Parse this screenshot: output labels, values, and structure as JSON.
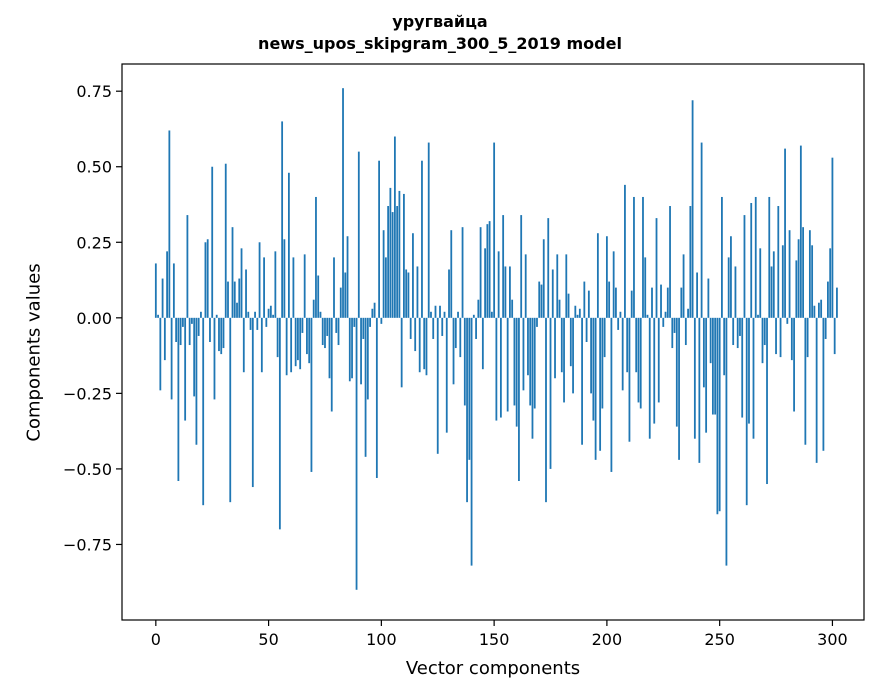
{
  "chart_data": {
    "type": "bar",
    "title_line1": "уругвайца",
    "title_line2": "news_upos_skipgram_300_5_2019 model",
    "xlabel": "Vector components",
    "ylabel": "Components values",
    "xlim": [
      -15,
      314
    ],
    "ylim": [
      -1.0,
      0.84
    ],
    "x_ticks": [
      0,
      50,
      100,
      150,
      200,
      250,
      300
    ],
    "x_tick_labels": [
      "0",
      "50",
      "100",
      "150",
      "200",
      "250",
      "300"
    ],
    "y_ticks": [
      -0.75,
      -0.5,
      -0.25,
      0.0,
      0.25,
      0.5,
      0.75
    ],
    "y_tick_labels": [
      "−0.75",
      "−0.50",
      "−0.25",
      "0.00",
      "0.25",
      "0.50",
      "0.75"
    ],
    "bar_color": "#1f77b4",
    "values": [
      0.18,
      0.01,
      -0.24,
      0.13,
      -0.14,
      0.22,
      0.62,
      -0.27,
      0.18,
      -0.08,
      -0.54,
      -0.09,
      -0.03,
      -0.34,
      0.34,
      -0.09,
      -0.02,
      -0.26,
      -0.42,
      -0.06,
      0.02,
      -0.62,
      0.25,
      0.26,
      -0.08,
      0.5,
      -0.27,
      0.01,
      -0.11,
      -0.12,
      -0.1,
      0.51,
      0.12,
      -0.61,
      0.3,
      0.12,
      0.05,
      0.13,
      0.23,
      -0.18,
      0.16,
      0.02,
      -0.04,
      -0.56,
      0.02,
      -0.04,
      0.25,
      -0.18,
      0.2,
      -0.03,
      0.03,
      0.04,
      0.01,
      0.22,
      -0.13,
      -0.7,
      0.65,
      0.26,
      -0.19,
      0.48,
      -0.18,
      0.2,
      -0.16,
      -0.14,
      -0.17,
      -0.05,
      0.21,
      -0.12,
      -0.15,
      -0.51,
      0.06,
      0.4,
      0.14,
      0.02,
      -0.09,
      -0.1,
      -0.06,
      -0.2,
      -0.31,
      0.2,
      -0.05,
      -0.09,
      0.1,
      0.76,
      0.15,
      0.27,
      -0.21,
      -0.2,
      -0.03,
      -0.9,
      0.55,
      -0.22,
      -0.07,
      -0.46,
      -0.27,
      -0.03,
      0.03,
      0.05,
      -0.53,
      0.52,
      -0.02,
      0.29,
      0.2,
      0.37,
      0.43,
      0.35,
      0.6,
      0.37,
      0.42,
      -0.23,
      0.41,
      0.16,
      0.15,
      -0.07,
      0.28,
      -0.11,
      0.17,
      -0.18,
      0.52,
      -0.17,
      -0.19,
      0.58,
      0.02,
      -0.07,
      0.04,
      -0.45,
      0.04,
      -0.06,
      0.02,
      -0.38,
      0.16,
      0.29,
      -0.22,
      -0.1,
      0.02,
      -0.13,
      0.3,
      -0.29,
      -0.61,
      -0.47,
      -0.82,
      0.01,
      -0.07,
      0.06,
      0.3,
      -0.17,
      0.23,
      0.31,
      0.32,
      0.02,
      0.58,
      -0.34,
      0.22,
      -0.33,
      0.34,
      0.17,
      -0.31,
      0.17,
      0.06,
      -0.29,
      -0.36,
      -0.54,
      0.34,
      -0.24,
      0.21,
      -0.19,
      -0.29,
      -0.4,
      -0.3,
      -0.03,
      0.12,
      0.11,
      0.26,
      -0.61,
      0.33,
      -0.5,
      0.16,
      -0.2,
      0.21,
      0.06,
      -0.18,
      -0.28,
      0.21,
      0.08,
      -0.16,
      -0.25,
      0.04,
      0.01,
      0.03,
      -0.42,
      0.12,
      -0.08,
      0.09,
      -0.25,
      -0.34,
      -0.47,
      0.28,
      -0.44,
      -0.3,
      -0.13,
      0.27,
      0.12,
      -0.51,
      0.22,
      0.1,
      -0.04,
      0.02,
      -0.24,
      0.44,
      -0.18,
      -0.41,
      0.09,
      0.4,
      -0.18,
      -0.28,
      -0.3,
      0.4,
      0.2,
      0.01,
      -0.4,
      0.1,
      -0.35,
      0.33,
      -0.28,
      0.11,
      -0.03,
      0.02,
      0.1,
      0.37,
      -0.1,
      -0.05,
      -0.36,
      -0.47,
      0.1,
      0.21,
      -0.09,
      0.03,
      0.37,
      0.72,
      -0.4,
      0.15,
      -0.48,
      0.58,
      -0.23,
      -0.38,
      0.13,
      -0.15,
      -0.32,
      -0.32,
      -0.65,
      -0.64,
      0.4,
      -0.19,
      -0.82,
      0.2,
      0.27,
      -0.09,
      0.17,
      -0.1,
      -0.06,
      -0.33,
      0.34,
      -0.62,
      -0.35,
      0.38,
      -0.4,
      0.4,
      0.01,
      0.23,
      -0.15,
      -0.09,
      -0.55,
      0.4,
      0.17,
      0.22,
      -0.12,
      0.37,
      -0.13,
      0.24,
      0.56,
      -0.02,
      0.29,
      -0.14,
      -0.31,
      0.19,
      0.26,
      0.57,
      0.3,
      -0.42,
      -0.13,
      0.29,
      0.24,
      0.04,
      -0.48,
      0.05,
      0.06,
      -0.44,
      -0.07,
      0.12,
      0.23,
      0.53,
      -0.12,
      0.1
    ]
  }
}
